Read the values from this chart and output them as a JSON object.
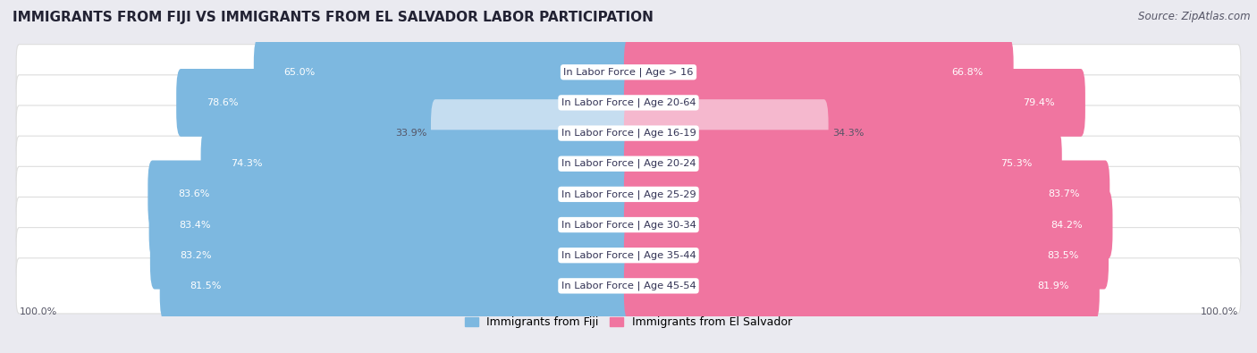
{
  "title": "IMMIGRANTS FROM FIJI VS IMMIGRANTS FROM EL SALVADOR LABOR PARTICIPATION",
  "source": "Source: ZipAtlas.com",
  "categories": [
    "In Labor Force | Age > 16",
    "In Labor Force | Age 20-64",
    "In Labor Force | Age 16-19",
    "In Labor Force | Age 20-24",
    "In Labor Force | Age 25-29",
    "In Labor Force | Age 30-34",
    "In Labor Force | Age 35-44",
    "In Labor Force | Age 45-54"
  ],
  "fiji_values": [
    65.0,
    78.6,
    33.9,
    74.3,
    83.6,
    83.4,
    83.2,
    81.5
  ],
  "salvador_values": [
    66.8,
    79.4,
    34.3,
    75.3,
    83.7,
    84.2,
    83.5,
    81.9
  ],
  "fiji_color": "#7db8e0",
  "fiji_color_light": "#c5ddf0",
  "salvador_color": "#f075a0",
  "salvador_color_light": "#f5b8ce",
  "bg_color": "#eaeaf0",
  "row_bg": "#ffffff",
  "row_bg_edge": "#dddddd",
  "label_color_dark": "#555566",
  "label_color_white": "#ffffff",
  "max_value": 100.0,
  "fiji_label": "Immigrants from Fiji",
  "salvador_label": "Immigrants from El Salvador",
  "left_axis_label": "100.0%",
  "right_axis_label": "100.0%"
}
